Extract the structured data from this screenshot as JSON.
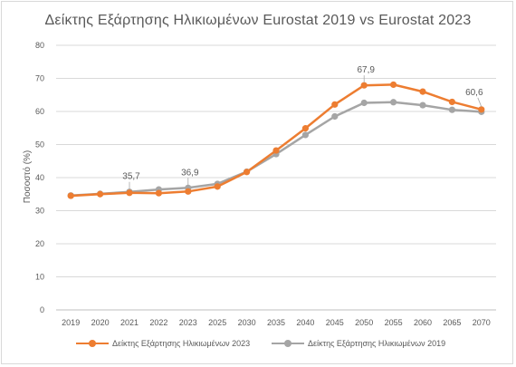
{
  "chart_data": {
    "type": "line",
    "title": "Δείκτης Εξάρτησης Ηλικιωμένων Eurostat 2019 vs Eurostat 2023",
    "ylabel": "Ποσοστό (%)",
    "xlabel": "",
    "categories": [
      "2019",
      "2020",
      "2021",
      "2022",
      "2023",
      "2025",
      "2030",
      "2035",
      "2040",
      "2045",
      "2050",
      "2055",
      "2060",
      "2065",
      "2070"
    ],
    "ylim": [
      0,
      80
    ],
    "yticks": [
      0,
      10,
      20,
      30,
      40,
      50,
      60,
      70,
      80
    ],
    "grid": "horizontal",
    "legend_position": "bottom",
    "series": [
      {
        "name": "Δείκτης Εξάρτησης Ηλικιωμένων 2023",
        "color": "#ed7d31",
        "values": [
          34.5,
          35.0,
          35.4,
          35.3,
          35.8,
          37.3,
          41.7,
          48.2,
          54.9,
          62.1,
          67.9,
          68.1,
          66.0,
          62.9,
          60.6
        ]
      },
      {
        "name": "Δείκτης Εξάρτησης Ηλικιωμένων 2019",
        "color": "#a5a5a5",
        "values": [
          34.6,
          35.1,
          35.7,
          36.4,
          36.9,
          38.1,
          41.8,
          47.1,
          52.9,
          58.5,
          62.6,
          62.8,
          61.9,
          60.5,
          59.9
        ]
      }
    ],
    "annotations": [
      {
        "text": "35,7",
        "series": 1,
        "index": 2
      },
      {
        "text": "36,9",
        "series": 1,
        "index": 4
      },
      {
        "text": "67,9",
        "series": 0,
        "index": 10
      },
      {
        "text": "60,6",
        "series": 0,
        "index": 14
      }
    ]
  }
}
